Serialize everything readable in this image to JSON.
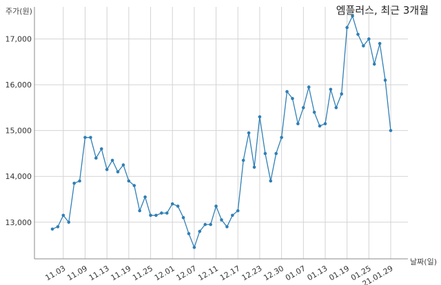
{
  "chart_data": {
    "type": "line",
    "title": "엠플러스, 최근 3개월",
    "ylabel": "주가(원)",
    "xlabel": "날짜(일)",
    "ylim": [
      12200,
      17700
    ],
    "yticks": [
      13000,
      14000,
      15000,
      16000,
      17000
    ],
    "ytick_labels": [
      "13,000",
      "14,000",
      "15,000",
      "16,000",
      "17,000"
    ],
    "xticks": [
      {
        "i": 2,
        "label": "11.03"
      },
      {
        "i": 6,
        "label": "11.09"
      },
      {
        "i": 10,
        "label": "11.13"
      },
      {
        "i": 14,
        "label": "11.19"
      },
      {
        "i": 18,
        "label": "11.25"
      },
      {
        "i": 22,
        "label": "12.01"
      },
      {
        "i": 26,
        "label": "12.07"
      },
      {
        "i": 30,
        "label": "12.11"
      },
      {
        "i": 34,
        "label": "12.17"
      },
      {
        "i": 38,
        "label": "12.23"
      },
      {
        "i": 42,
        "label": "12.30"
      },
      {
        "i": 46,
        "label": "01.07"
      },
      {
        "i": 50,
        "label": "01.13"
      },
      {
        "i": 54,
        "label": "01.19"
      },
      {
        "i": 58,
        "label": "01.25"
      },
      {
        "i": 62,
        "label": "21.01.29"
      }
    ],
    "grid": true,
    "color": "#2f7fb5",
    "values": [
      12850,
      12900,
      13150,
      13000,
      13850,
      13900,
      14850,
      14850,
      14400,
      14600,
      14150,
      14350,
      14100,
      14250,
      13900,
      13800,
      13250,
      13550,
      13150,
      13150,
      13200,
      13200,
      13400,
      13350,
      13100,
      12750,
      12450,
      12800,
      12950,
      12950,
      13350,
      13050,
      12900,
      13150,
      13250,
      14350,
      14950,
      14200,
      15300,
      14500,
      13900,
      14500,
      14850,
      15850,
      15700,
      15150,
      15500,
      15950,
      15400,
      15100,
      15150,
      15900,
      15500,
      15800,
      17250,
      17500,
      17100,
      16850,
      17000,
      16450,
      16900,
      16100,
      15000
    ]
  }
}
